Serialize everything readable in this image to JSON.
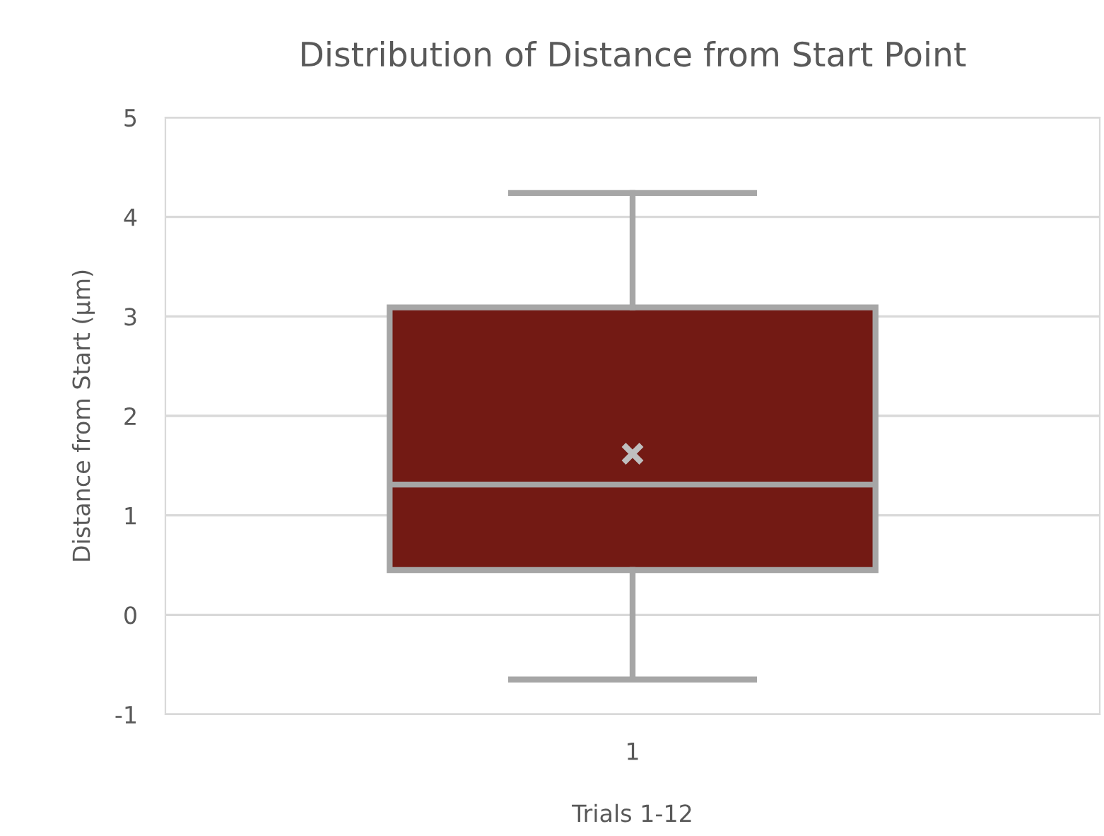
{
  "chart_data": {
    "type": "box",
    "title": "Distribution of Distance from Start Point",
    "xlabel": "Trials 1-12",
    "ylabel": "Distance from Start (µm)",
    "categories": [
      "1"
    ],
    "boxes": [
      {
        "low": -0.65,
        "q1": 0.45,
        "median": 1.31,
        "q3": 3.09,
        "high": 4.24,
        "mean": 1.62
      }
    ],
    "color": "#731a14",
    "ylim": [
      -1,
      5
    ],
    "yticks": [
      -1,
      0,
      1,
      2,
      3,
      4,
      5
    ],
    "grid": "y"
  }
}
